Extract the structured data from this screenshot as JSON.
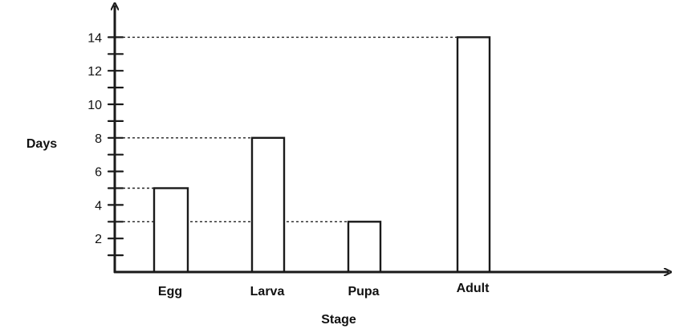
{
  "chart_data": {
    "type": "bar",
    "title": "",
    "xlabel": "Stage",
    "ylabel": "Days",
    "categories": [
      "Egg",
      "Larva",
      "Pupa",
      "Adult"
    ],
    "values": [
      5,
      8,
      3,
      14
    ],
    "ylim": [
      0,
      15
    ],
    "yticks_labeled": [
      2,
      4,
      6,
      8,
      10,
      12,
      14
    ],
    "yticks_minor": [
      1,
      3,
      5,
      7,
      9,
      11,
      13
    ],
    "guide_lines": true,
    "grid": false,
    "legend": "none",
    "bar_fill": "#ffffff",
    "line_color": "#1a1a1a"
  }
}
